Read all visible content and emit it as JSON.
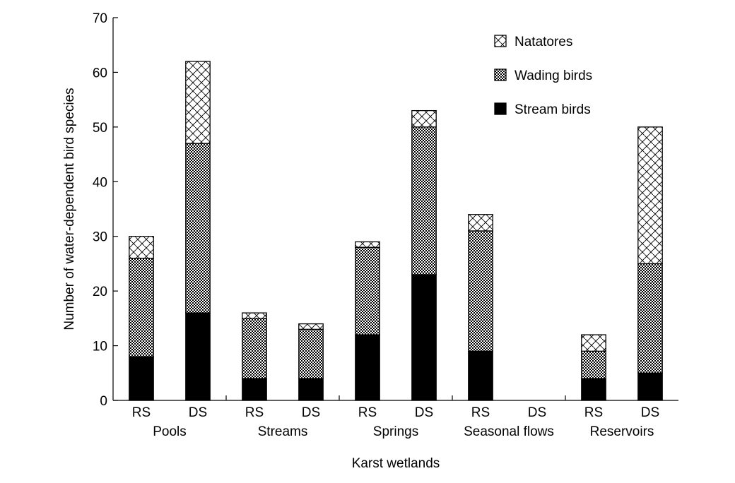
{
  "chart_data": {
    "type": "bar",
    "stacked": true,
    "title": "",
    "xlabel": "Karst wetlands",
    "ylabel": "Number of water-dependent bird species",
    "ylim": [
      0,
      70
    ],
    "yticks": [
      0,
      10,
      20,
      30,
      40,
      50,
      60,
      70
    ],
    "grid": false,
    "legend_position": "top-right",
    "groups": [
      "Pools",
      "Streams",
      "Springs",
      "Seasonal flows",
      "Reservoirs"
    ],
    "subcategories": [
      "RS",
      "DS"
    ],
    "series": [
      {
        "name": "Stream birds",
        "pattern": "solid",
        "values": [
          8,
          16,
          4,
          4,
          12,
          23,
          9,
          0,
          4,
          5
        ]
      },
      {
        "name": "Wading birds",
        "pattern": "checker",
        "values": [
          18,
          31,
          11,
          9,
          16,
          27,
          22,
          0,
          5,
          20
        ]
      },
      {
        "name": "Natatores",
        "pattern": "diagonal-cross",
        "values": [
          4,
          15,
          1,
          1,
          1,
          3,
          3,
          0,
          3,
          25
        ]
      }
    ],
    "legend_order": [
      "Natatores",
      "Wading birds",
      "Stream birds"
    ]
  }
}
